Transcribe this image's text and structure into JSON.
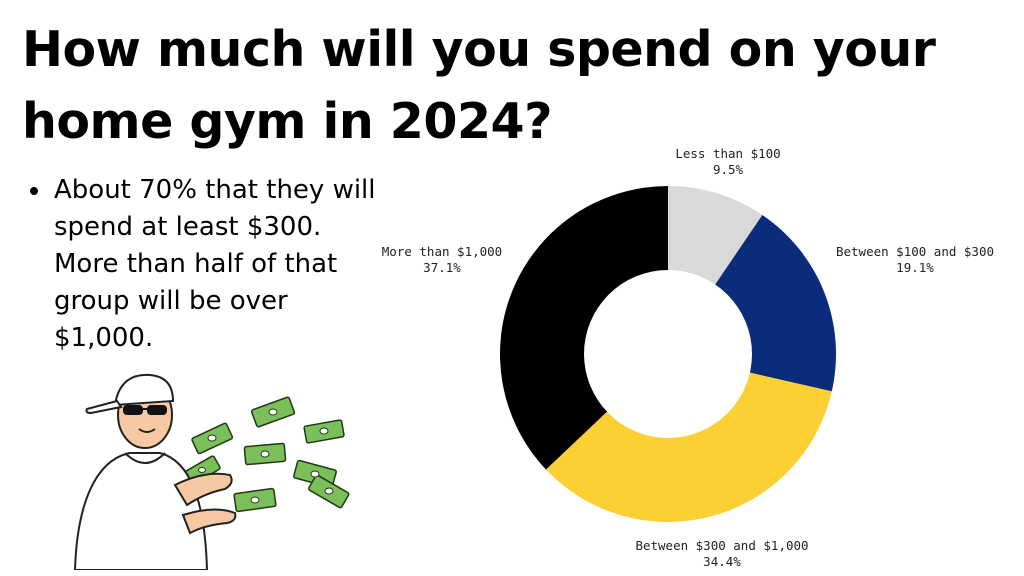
{
  "title": "How much will you spend on your home gym in 2024?",
  "bullets": [
    "About 70% that they will spend at least $300. More than half of that group will be over $1,000."
  ],
  "illustration": {
    "description_icon": "man-with-sunglasses-throwing-money-icon"
  },
  "chart_data": {
    "type": "pie",
    "donut": true,
    "categories": [
      "Less than $100",
      "Between $100 and $300",
      "Between $300 and $1,000",
      "More than $1,000"
    ],
    "values": [
      9.5,
      19.1,
      34.4,
      37.1
    ],
    "value_labels": [
      "9.5%",
      "19.1%",
      "34.4%",
      "37.1%"
    ],
    "colors": [
      "#d9d9d9",
      "#0b2c7a",
      "#fccf33",
      "#000000"
    ],
    "start_angle_deg": 0,
    "direction": "clockwise",
    "label_placement": "outside"
  }
}
